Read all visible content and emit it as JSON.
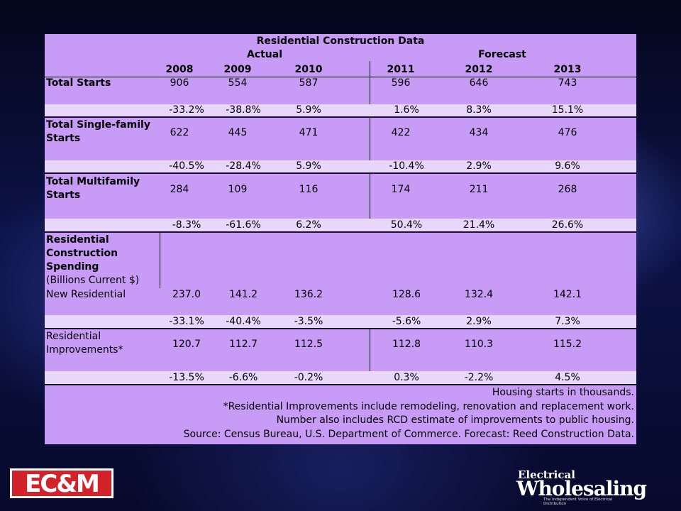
{
  "table": {
    "title": "Residential Construction Data",
    "group_actual": "Actual",
    "group_forecast": "Forecast",
    "years": [
      "2008",
      "2009",
      "2010",
      "2011",
      "2012",
      "2013"
    ],
    "rows": [
      {
        "label": "Total Starts",
        "values": [
          "906",
          "554",
          "587",
          "596",
          "646",
          "743"
        ],
        "pct": [
          "-33.2%",
          "-38.8%",
          "5.9%",
          "1.6%",
          "8.3%",
          "15.1%"
        ]
      },
      {
        "label": "Total Single-family Starts",
        "values": [
          "622",
          "445",
          "471",
          "422",
          "434",
          "476"
        ],
        "pct": [
          "-40.5%",
          "-28.4%",
          "5.9%",
          "-10.4%",
          "2.9%",
          "9.6%"
        ]
      },
      {
        "label": "Total Multifamily Starts",
        "values": [
          "284",
          "109",
          "116",
          "174",
          "211",
          "268"
        ],
        "pct": [
          "-8.3%",
          "-61.6%",
          "6.2%",
          "50.4%",
          "21.4%",
          "26.6%"
        ]
      }
    ],
    "spending_header": "Residential Construction Spending",
    "spending_unit": "(Billions Current $)",
    "spending_rows": [
      {
        "label": "New Residential",
        "values": [
          "237.0",
          "141.2",
          "136.2",
          "128.6",
          "132.4",
          "142.1"
        ],
        "pct": [
          "-33.1%",
          "-40.4%",
          "-3.5%",
          "-5.6%",
          "2.9%",
          "7.3%"
        ]
      },
      {
        "label": "Residential Improvements*",
        "values": [
          "120.7",
          "112.7",
          "112.5",
          "112.8",
          "110.3",
          "115.2"
        ],
        "pct": [
          "-13.5%",
          "-6.6%",
          "-0.2%",
          "0.3%",
          "-2.2%",
          "4.5%"
        ]
      }
    ],
    "footnotes": [
      "Housing starts in thousands.",
      "*Residential Improvements include remodeling, renovation and replacement work.",
      "Number also includes RCD estimate of improvements to public housing.",
      "Source: Census Bureau, U.S. Department of Commerce. Forecast: Reed Construction Data."
    ]
  },
  "logos": {
    "left": "EC&M",
    "right_top": "Electrical",
    "right_main": "Wholesaling",
    "right_tagline": "The Independent Voice of Electrical Distribution"
  }
}
